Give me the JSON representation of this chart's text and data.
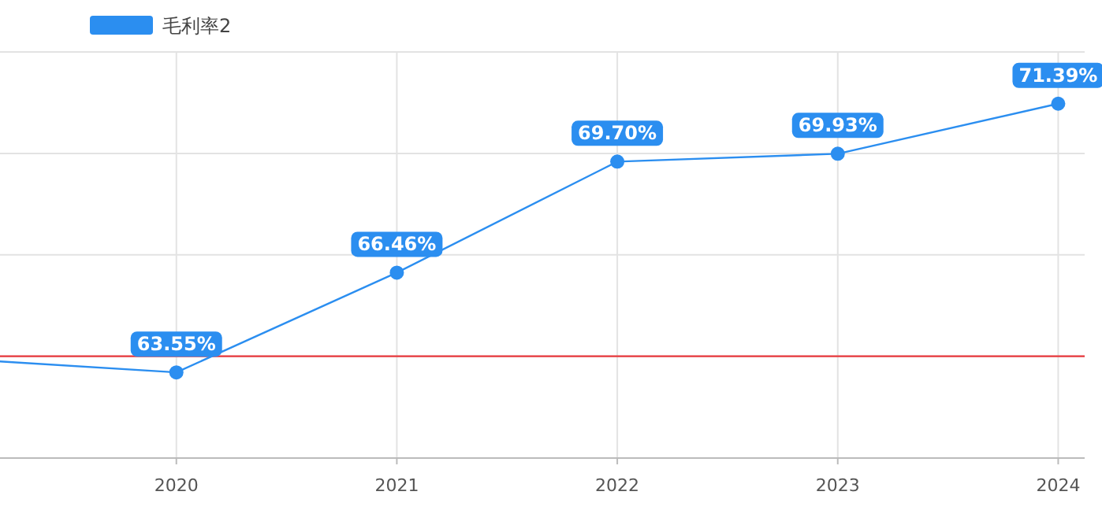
{
  "chart_data": {
    "type": "line",
    "x": [
      2019.2,
      2020,
      2021,
      2022,
      2023,
      2024
    ],
    "series": [
      {
        "name": "毛利率2",
        "color": "#2b8ef0",
        "values": [
          63.87,
          63.55,
          66.46,
          69.7,
          69.93,
          71.39
        ],
        "value_labels": [
          null,
          "63.55%",
          "66.46%",
          "69.70%",
          "69.93%",
          "71.39%"
        ]
      }
    ],
    "xlim": [
      2019.2,
      2024.12
    ],
    "xticks": [
      2020,
      2021,
      2022,
      2023,
      2024
    ],
    "ylim": [
      61.05,
      72.9
    ],
    "yticks": [
      {
        "value": 61.05,
        "label": null
      },
      {
        "value": 64.02,
        "label": null
      },
      {
        "value": 66.98,
        "label": null
      },
      {
        "value": 69.94,
        "label": null
      },
      {
        "value": 72.9,
        "label": null
      }
    ],
    "ref_lines": [
      {
        "axis": "y",
        "value": 64.02,
        "color": "#e8383d"
      }
    ],
    "grid": true,
    "legend": "top left",
    "marker": "circle",
    "line_style": "solid"
  }
}
